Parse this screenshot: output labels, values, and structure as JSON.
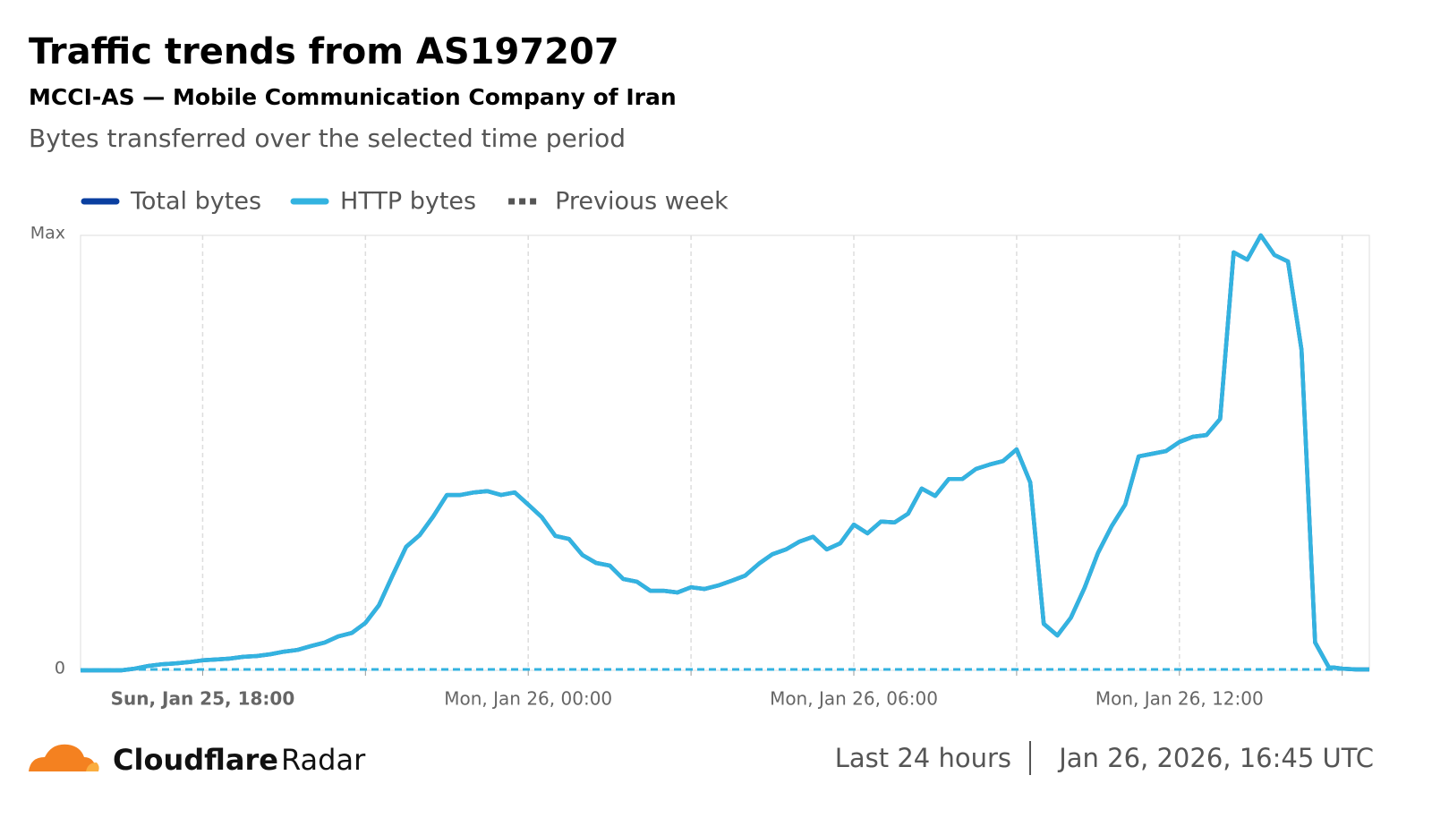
{
  "title": "Traffic trends from AS197207",
  "subtitle": "MCCI-AS — Mobile Communication Company of Iran",
  "description": "Bytes transferred over the selected time period",
  "chart_data": {
    "type": "line",
    "x": [
      "2026-01-25T15:45Z",
      "2026-01-25T16:00Z",
      "2026-01-25T16:15Z",
      "2026-01-25T16:30Z",
      "2026-01-25T16:45Z",
      "2026-01-25T17:00Z",
      "2026-01-25T17:15Z",
      "2026-01-25T17:30Z",
      "2026-01-25T17:45Z",
      "2026-01-25T18:00Z",
      "2026-01-25T18:15Z",
      "2026-01-25T18:30Z",
      "2026-01-25T18:45Z",
      "2026-01-25T19:00Z",
      "2026-01-25T19:15Z",
      "2026-01-25T19:30Z",
      "2026-01-25T19:45Z",
      "2026-01-25T20:00Z",
      "2026-01-25T20:15Z",
      "2026-01-25T20:30Z",
      "2026-01-25T20:45Z",
      "2026-01-25T21:00Z",
      "2026-01-25T21:15Z",
      "2026-01-25T21:30Z",
      "2026-01-25T21:45Z",
      "2026-01-25T22:00Z",
      "2026-01-25T22:15Z",
      "2026-01-25T22:30Z",
      "2026-01-25T22:45Z",
      "2026-01-25T23:00Z",
      "2026-01-25T23:15Z",
      "2026-01-25T23:30Z",
      "2026-01-25T23:45Z",
      "2026-01-26T00:00Z",
      "2026-01-26T00:15Z",
      "2026-01-26T00:30Z",
      "2026-01-26T00:45Z",
      "2026-01-26T01:00Z",
      "2026-01-26T01:15Z",
      "2026-01-26T01:30Z",
      "2026-01-26T01:45Z",
      "2026-01-26T02:00Z",
      "2026-01-26T02:15Z",
      "2026-01-26T02:30Z",
      "2026-01-26T02:45Z",
      "2026-01-26T03:00Z",
      "2026-01-26T03:15Z",
      "2026-01-26T03:30Z",
      "2026-01-26T03:45Z",
      "2026-01-26T04:00Z",
      "2026-01-26T04:15Z",
      "2026-01-26T04:30Z",
      "2026-01-26T04:45Z",
      "2026-01-26T05:00Z",
      "2026-01-26T05:15Z",
      "2026-01-26T05:30Z",
      "2026-01-26T05:45Z",
      "2026-01-26T06:00Z",
      "2026-01-26T06:15Z",
      "2026-01-26T06:30Z",
      "2026-01-26T06:45Z",
      "2026-01-26T07:00Z",
      "2026-01-26T07:15Z",
      "2026-01-26T07:30Z",
      "2026-01-26T07:45Z",
      "2026-01-26T08:00Z",
      "2026-01-26T08:15Z",
      "2026-01-26T08:30Z",
      "2026-01-26T08:45Z",
      "2026-01-26T09:00Z",
      "2026-01-26T09:15Z",
      "2026-01-26T09:30Z",
      "2026-01-26T09:45Z",
      "2026-01-26T10:00Z",
      "2026-01-26T10:15Z",
      "2026-01-26T10:30Z",
      "2026-01-26T10:45Z",
      "2026-01-26T11:00Z",
      "2026-01-26T11:15Z",
      "2026-01-26T11:30Z",
      "2026-01-26T11:45Z",
      "2026-01-26T12:00Z",
      "2026-01-26T12:15Z",
      "2026-01-26T12:30Z",
      "2026-01-26T12:45Z",
      "2026-01-26T13:00Z",
      "2026-01-26T13:15Z",
      "2026-01-26T13:30Z",
      "2026-01-26T13:45Z",
      "2026-01-26T14:00Z",
      "2026-01-26T14:15Z",
      "2026-01-26T14:30Z",
      "2026-01-26T14:45Z",
      "2026-01-26T15:00Z",
      "2026-01-26T15:15Z",
      "2026-01-26T15:30Z"
    ],
    "series": [
      {
        "name": "Total bytes",
        "color": "#0a3fa0",
        "dashed": false,
        "values": [
          0,
          0,
          0,
          0,
          0.004,
          0.01,
          0.014,
          0.016,
          0.019,
          0.023,
          0.025,
          0.027,
          0.031,
          0.033,
          0.037,
          0.043,
          0.047,
          0.056,
          0.064,
          0.078,
          0.086,
          0.109,
          0.15,
          0.218,
          0.284,
          0.311,
          0.354,
          0.403,
          0.403,
          0.409,
          0.412,
          0.403,
          0.409,
          0.381,
          0.352,
          0.309,
          0.302,
          0.265,
          0.247,
          0.241,
          0.21,
          0.204,
          0.183,
          0.183,
          0.179,
          0.191,
          0.187,
          0.195,
          0.206,
          0.218,
          0.245,
          0.267,
          0.278,
          0.296,
          0.307,
          0.278,
          0.292,
          0.335,
          0.315,
          0.342,
          0.34,
          0.36,
          0.418,
          0.401,
          0.44,
          0.44,
          0.463,
          0.473,
          0.481,
          0.508,
          0.432,
          0.107,
          0.08,
          0.121,
          0.189,
          0.27,
          0.331,
          0.381,
          0.492,
          0.498,
          0.504,
          0.525,
          0.537,
          0.541,
          0.578,
          0.961,
          0.944,
          1,
          0.955,
          0.94,
          0.737,
          0.064,
          0.008,
          0.004,
          0.002,
          0.002
        ]
      },
      {
        "name": "HTTP bytes",
        "color": "#33b3e0",
        "dashed": false,
        "values": [
          0,
          0,
          0,
          0,
          0.004,
          0.01,
          0.014,
          0.016,
          0.019,
          0.023,
          0.025,
          0.027,
          0.031,
          0.033,
          0.037,
          0.043,
          0.047,
          0.056,
          0.064,
          0.078,
          0.086,
          0.109,
          0.15,
          0.218,
          0.284,
          0.311,
          0.354,
          0.403,
          0.403,
          0.409,
          0.412,
          0.403,
          0.409,
          0.381,
          0.352,
          0.309,
          0.302,
          0.265,
          0.247,
          0.241,
          0.21,
          0.204,
          0.183,
          0.183,
          0.179,
          0.191,
          0.187,
          0.195,
          0.206,
          0.218,
          0.245,
          0.267,
          0.278,
          0.296,
          0.307,
          0.278,
          0.292,
          0.335,
          0.315,
          0.342,
          0.34,
          0.36,
          0.418,
          0.401,
          0.44,
          0.44,
          0.463,
          0.473,
          0.481,
          0.508,
          0.432,
          0.107,
          0.08,
          0.121,
          0.189,
          0.27,
          0.331,
          0.381,
          0.492,
          0.498,
          0.504,
          0.525,
          0.537,
          0.541,
          0.578,
          0.961,
          0.944,
          1,
          0.955,
          0.94,
          0.737,
          0.064,
          0.008,
          0.004,
          0.002,
          0.002
        ]
      },
      {
        "name": "Previous week",
        "color": "#33b3e0",
        "legend_color": "#555555",
        "dashed": true,
        "values": [
          0.002,
          0.002,
          0.002,
          0.002,
          0.002,
          0.002,
          0.002,
          0.002,
          0.002,
          0.002,
          0.002,
          0.002,
          0.002,
          0.002,
          0.002,
          0.002,
          0.002,
          0.002,
          0.002,
          0.002,
          0.002,
          0.002,
          0.002,
          0.002,
          0.002,
          0.002,
          0.002,
          0.002,
          0.002,
          0.002,
          0.002,
          0.002,
          0.002,
          0.002,
          0.002,
          0.002,
          0.002,
          0.002,
          0.002,
          0.002,
          0.002,
          0.002,
          0.002,
          0.002,
          0.002,
          0.002,
          0.002,
          0.002,
          0.002,
          0.002,
          0.002,
          0.002,
          0.002,
          0.002,
          0.002,
          0.002,
          0.002,
          0.002,
          0.002,
          0.002,
          0.002,
          0.002,
          0.002,
          0.002,
          0.002,
          0.002,
          0.002,
          0.002,
          0.002,
          0.002,
          0.002,
          0.002,
          0.002,
          0.002,
          0.002,
          0.002,
          0.002,
          0.002,
          0.002,
          0.002,
          0.002,
          0.002,
          0.002,
          0.002,
          0.002,
          0.002,
          0.002,
          0.002,
          0.002,
          0.002,
          0.002,
          0.002,
          0.002,
          0.002,
          0.002,
          0.002
        ]
      }
    ],
    "xlim": [
      "2026-01-25T15:45Z",
      "2026-01-26T15:30Z"
    ],
    "xticks": [
      {
        "value": "2026-01-25T18:00Z",
        "label": "Sun, Jan 25, 18:00"
      },
      {
        "value": "2026-01-25T21:00Z",
        "label": null
      },
      {
        "value": "2026-01-26T00:00Z",
        "label": "Mon, Jan 26, 00:00"
      },
      {
        "value": "2026-01-26T03:00Z",
        "label": null
      },
      {
        "value": "2026-01-26T06:00Z",
        "label": "Mon, Jan 26, 06:00"
      },
      {
        "value": "2026-01-26T09:00Z",
        "label": null
      },
      {
        "value": "2026-01-26T12:00Z",
        "label": "Mon, Jan 26, 12:00"
      },
      {
        "value": "2026-01-26T15:00Z",
        "label": null
      }
    ],
    "ylim": [
      0,
      1
    ],
    "yticks": [
      0,
      {
        "value": 1,
        "label": "Max"
      }
    ],
    "grid": true
  },
  "footer": {
    "brand": "Cloudflare",
    "product": "Radar",
    "range": "Last 24 hours",
    "timestamp": "Jan 26, 2026, 16:45 UTC"
  }
}
